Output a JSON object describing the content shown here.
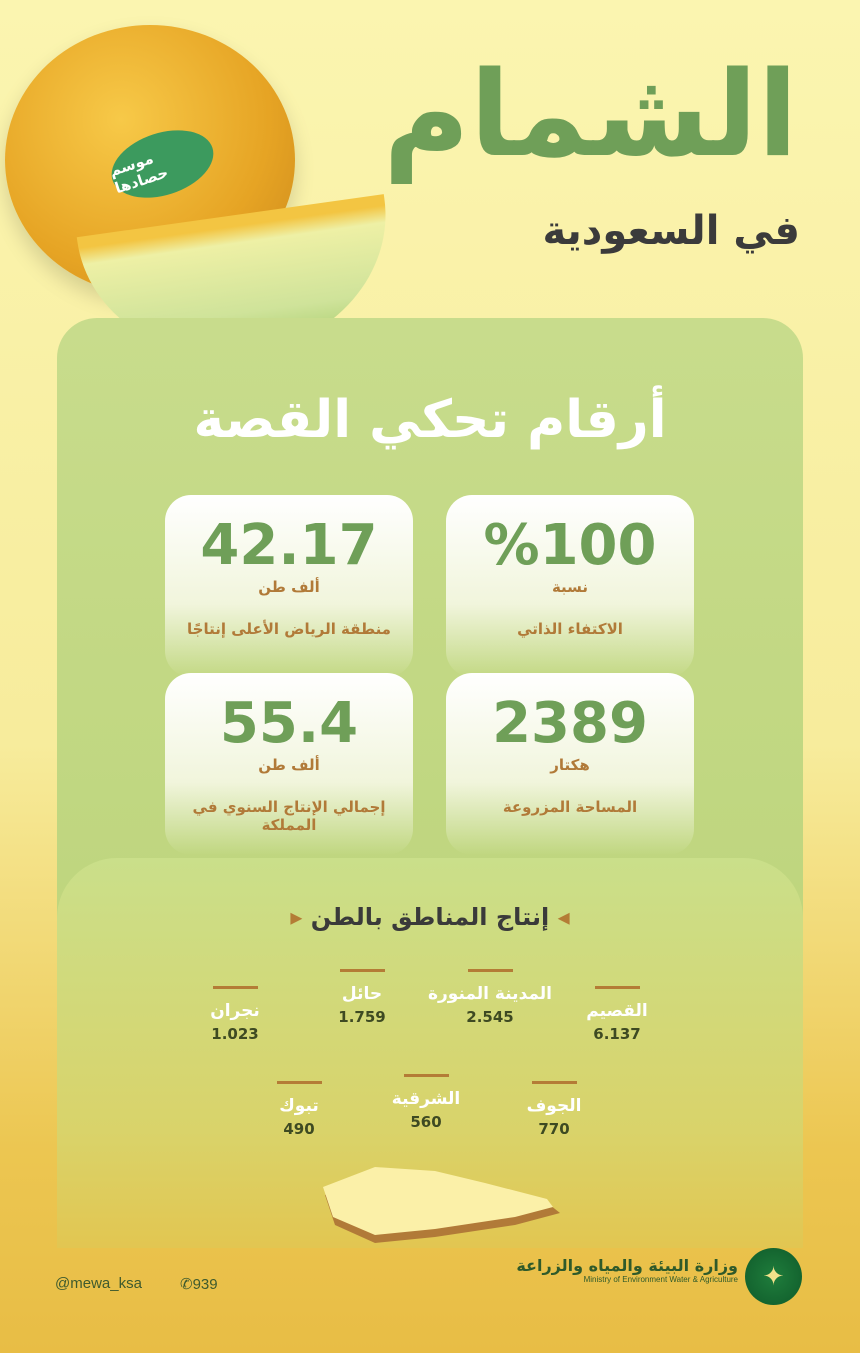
{
  "title": "الشمام",
  "subtitle": "في السعودية",
  "badge": "موسم حصادها",
  "heading": "أرقام تحكي القصة",
  "stats": [
    {
      "value": "42.17",
      "unit": "ألف طن",
      "desc": "منطقة الرياض الأعلى إنتاجًا"
    },
    {
      "value": "%100",
      "unit": "نسبة",
      "desc": "الاكتفاء الذاتي"
    },
    {
      "value": "55.4",
      "unit": "ألف طن",
      "desc": "إجمالي الإنتاج السنوي في المملكة"
    },
    {
      "value": "2389",
      "unit": "هكتار",
      "desc": "المساحة المزروعة"
    }
  ],
  "regions_title": "إنتاج المناطق بالطن",
  "regions": [
    {
      "name": "القصيم",
      "value": "6.137"
    },
    {
      "name": "المدينة المنورة",
      "value": "2.545"
    },
    {
      "name": "حائل",
      "value": "1.759"
    },
    {
      "name": "نجران",
      "value": "1.023"
    },
    {
      "name": "الجوف",
      "value": "770"
    },
    {
      "name": "الشرقية",
      "value": "560"
    },
    {
      "name": "تبوك",
      "value": "490"
    }
  ],
  "footer": {
    "handle": "@mewa_ksa",
    "phone": "939",
    "ministry_ar": "وزارة البيئة والمياه والزراعة",
    "ministry_en": "Ministry of Environment Water & Agriculture"
  },
  "colors": {
    "accent_green": "#6f9f58",
    "brown": "#b17a38",
    "panel": "#c8dc8c"
  }
}
